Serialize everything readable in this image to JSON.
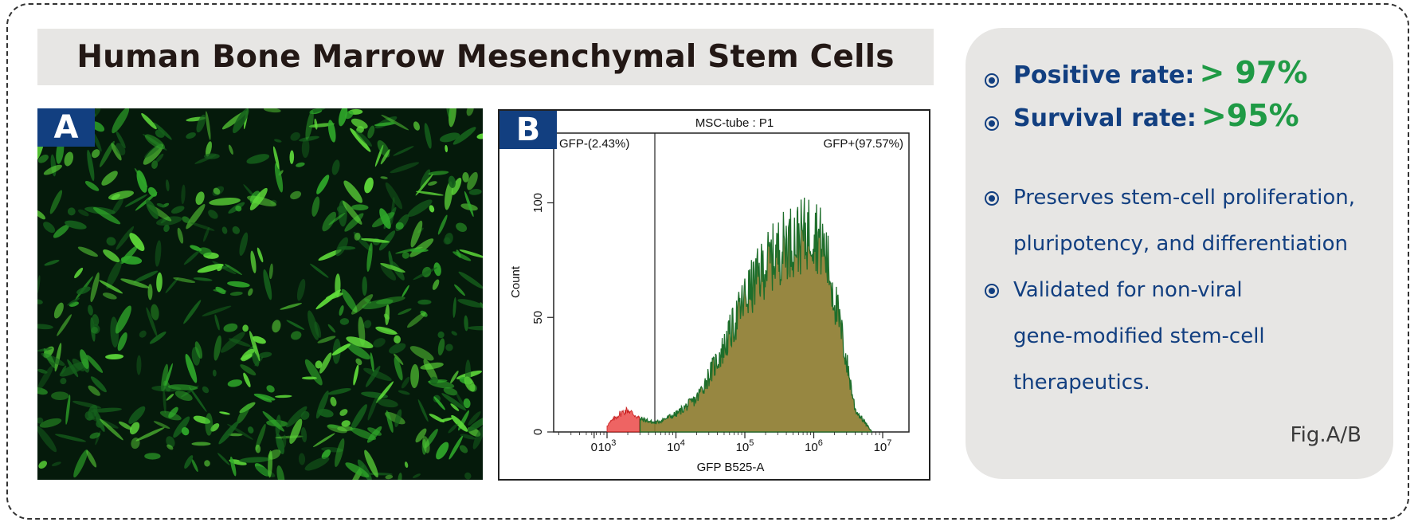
{
  "title": "Human Bone Marrow Mesenchymal Stem Cells",
  "panel_a": {
    "label": "A"
  },
  "panel_b": {
    "label": "B",
    "plot_title": "MSC-tube : P1",
    "gate_negative_label": "GFP-(2.43%)",
    "gate_positive_label": "GFP+(97.57%)",
    "ylabel": "Count",
    "xlabel": "GFP B525-A",
    "y_ticks": [
      "0",
      "50",
      "100"
    ],
    "x_ticks": [
      "0",
      "10",
      "10",
      "10",
      "10",
      "10"
    ],
    "x_tick_exponents": [
      "",
      "3",
      "4",
      "5",
      "6",
      "7"
    ]
  },
  "chart_data": {
    "type": "area",
    "title": "MSC-tube : P1",
    "xlabel": "GFP B525-A",
    "ylabel": "Count",
    "x_scale": "log",
    "x": [
      1000,
      1500,
      2000,
      3000,
      5000,
      10000,
      20000,
      50000,
      100000,
      200000,
      400000,
      700000,
      1000000,
      1500000,
      2500000,
      4000000,
      7000000
    ],
    "series": [
      {
        "values": [
          3,
          8,
          10,
          6,
          4,
          8,
          15,
          38,
          60,
          75,
          85,
          88,
          92,
          80,
          45,
          10,
          0
        ]
      }
    ],
    "gates": [
      {
        "label": "GFP-(2.43%)",
        "color": "#e8302f"
      },
      {
        "label": "GFP+(97.57%)",
        "color": "#8c7a2c"
      }
    ],
    "ylim": [
      0,
      120
    ],
    "grid": false
  },
  "stats": [
    {
      "label": "Positive rate:",
      "value": "> 97%"
    },
    {
      "label": "Survival rate:",
      "value": ">95%"
    }
  ],
  "features": [
    {
      "lines": [
        "Preserves stem-cell proliferation,",
        " pluripotency, and differentiation"
      ]
    },
    {
      "lines": [
        "Validated for non-viral",
        "gene-modified stem-cell",
        "therapeutics."
      ]
    }
  ],
  "figure_caption": "Fig.A/B",
  "colors": {
    "navy": "#123f80",
    "green": "#1f9a45",
    "panel_gray": "#e7e6e4",
    "neg_fill": "#e8302f",
    "pos_fill": "#8c7a2c",
    "pos_line": "#1e6e2b"
  }
}
